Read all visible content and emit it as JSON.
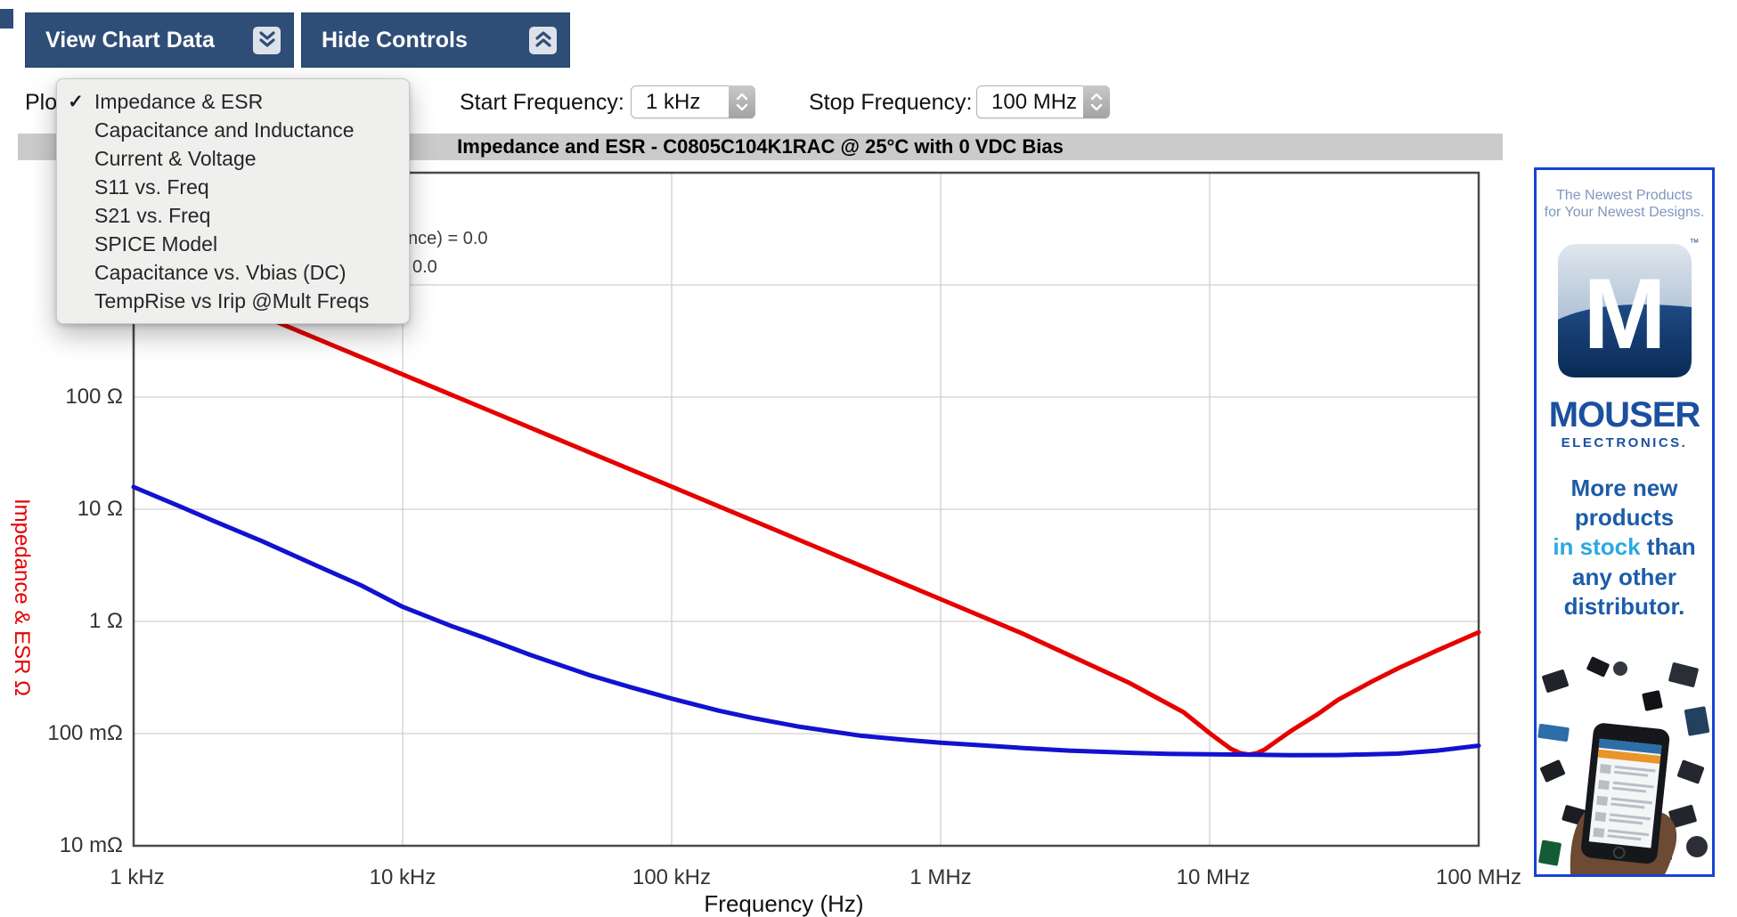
{
  "toolbar": {
    "view_chart_data_label": "View Chart Data",
    "hide_controls_label": "Hide Controls"
  },
  "controls": {
    "plot_label_fragment": "Plo",
    "start_frequency_label": "Start Frequency:",
    "start_frequency_value": "1 kHz",
    "stop_frequency_label": "Stop Frequency:",
    "stop_frequency_value": "100 MHz"
  },
  "plot_menu": {
    "checkmark": "✓",
    "items": [
      "Impedance & ESR",
      "Capacitance and Inductance",
      "Current & Voltage",
      "S11 vs. Freq",
      "S21 vs. Freq",
      "SPICE Model",
      "Capacitance vs. Vbias (DC)",
      "TempRise vs Irip @Mult Freqs"
    ],
    "checked_index": 0
  },
  "chart": {
    "title": "Impedance and ESR - C0805C104K1RAC @ 25°C with 0 VDC Bias",
    "legend_fragment_line1": "nce) = 0.0",
    "legend_fragment_line2": "0.0"
  },
  "chart_data": {
    "type": "line",
    "title": "Impedance and ESR - C0805C104K1RAC @ 25°C with 0 VDC Bias",
    "xlabel": "Frequency (Hz)",
    "ylabel": "Impedance & ESR Ω",
    "log_x": true,
    "log_y": true,
    "x_range_hz": [
      1000,
      100000000
    ],
    "y_range_ohm": [
      0.01,
      10000
    ],
    "x_ticks": [
      "1 kHz",
      "10 kHz",
      "100 kHz",
      "1 MHz",
      "10 MHz",
      "100 MHz"
    ],
    "y_ticks": [
      "100 Ω",
      "10 Ω",
      "1 Ω",
      "100 mΩ",
      "10 mΩ"
    ],
    "x_gridlines_hz": [
      10000,
      100000,
      1000000,
      10000000
    ],
    "y_gridlines_ohm": [
      1000,
      100,
      10,
      1,
      0.1
    ],
    "grid": true,
    "legend_position": "top-left",
    "series": [
      {
        "name": "Impedance",
        "color": "#e60000",
        "points_hz_ohm": [
          [
            1000,
            1592
          ],
          [
            2000,
            796
          ],
          [
            5000,
            318
          ],
          [
            10000,
            159
          ],
          [
            20000,
            79.6
          ],
          [
            50000,
            31.8
          ],
          [
            100000,
            15.9
          ],
          [
            200000,
            7.95
          ],
          [
            500000,
            3.17
          ],
          [
            1000000,
            1.58
          ],
          [
            2000000,
            0.786
          ],
          [
            5000000,
            0.285
          ],
          [
            8000000,
            0.155
          ],
          [
            10000000,
            0.101
          ],
          [
            11000000,
            0.085
          ],
          [
            12000000,
            0.073
          ],
          [
            13000000,
            0.067
          ],
          [
            14000000,
            0.065
          ],
          [
            15000000,
            0.067
          ],
          [
            16000000,
            0.072
          ],
          [
            18000000,
            0.088
          ],
          [
            20000000,
            0.105
          ],
          [
            25000000,
            0.147
          ],
          [
            30000000,
            0.2
          ],
          [
            40000000,
            0.29
          ],
          [
            50000000,
            0.38
          ],
          [
            70000000,
            0.55
          ],
          [
            100000000,
            0.8
          ]
        ]
      },
      {
        "name": "ESR",
        "color": "#1212d0",
        "points_hz_ohm": [
          [
            1000,
            15.8
          ],
          [
            1500,
            10.5
          ],
          [
            2000,
            7.8
          ],
          [
            3000,
            5.2
          ],
          [
            5000,
            3.0
          ],
          [
            7000,
            2.1
          ],
          [
            10000,
            1.35
          ],
          [
            15000,
            0.92
          ],
          [
            20000,
            0.72
          ],
          [
            30000,
            0.5
          ],
          [
            50000,
            0.33
          ],
          [
            70000,
            0.26
          ],
          [
            100000,
            0.205
          ],
          [
            150000,
            0.16
          ],
          [
            200000,
            0.138
          ],
          [
            300000,
            0.115
          ],
          [
            500000,
            0.096
          ],
          [
            700000,
            0.089
          ],
          [
            1000000,
            0.083
          ],
          [
            1500000,
            0.078
          ],
          [
            2000000,
            0.0745
          ],
          [
            3000000,
            0.0705
          ],
          [
            5000000,
            0.0675
          ],
          [
            7000000,
            0.066
          ],
          [
            10000000,
            0.0655
          ],
          [
            15000000,
            0.0647
          ],
          [
            20000000,
            0.0643
          ],
          [
            30000000,
            0.0644
          ],
          [
            50000000,
            0.0663
          ],
          [
            70000000,
            0.0705
          ],
          [
            100000000,
            0.078
          ]
        ]
      }
    ]
  },
  "ad": {
    "top_tag_line1": "The Newest Products",
    "top_tag_line2": "for Your Newest Designs.",
    "logo_letter": "M",
    "trademark": "™",
    "brand": "MOUSER",
    "brand_sub": "ELECTRONICS.",
    "tagline_line1": "More new",
    "tagline_line2": "products",
    "tagline_line3_highlight": "in stock",
    "tagline_line3_rest": " than",
    "tagline_line4": "any other",
    "tagline_line5": "distributor."
  }
}
